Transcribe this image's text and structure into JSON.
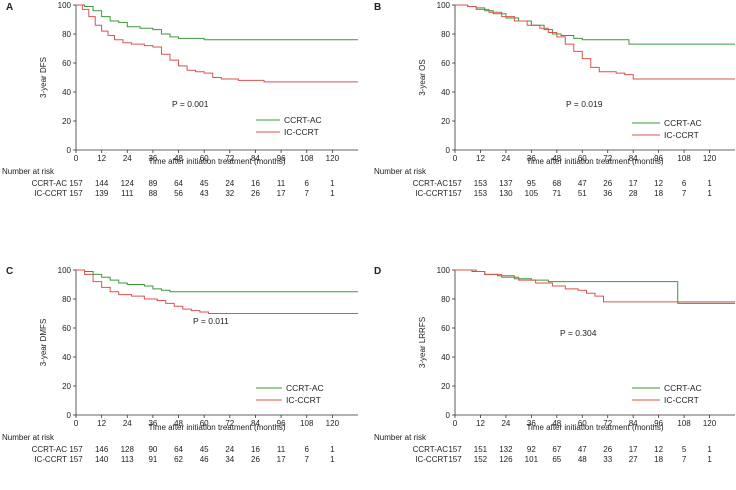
{
  "chart_data": [
    {
      "type": "line",
      "panel": "A",
      "ylabel": "3-year DFS",
      "xlabel": "Time after initiation treatment (months)",
      "xlim": [
        0,
        132
      ],
      "ylim": [
        0,
        100
      ],
      "xticks": [
        0,
        12,
        24,
        36,
        48,
        60,
        72,
        84,
        96,
        108,
        120
      ],
      "yticks": [
        0,
        20,
        40,
        60,
        80,
        100
      ],
      "p_value": "P = 0.001",
      "series": [
        {
          "name": "CCRT-AC",
          "color": "#3a9a3a",
          "points": [
            [
              0,
              100
            ],
            [
              4,
              99
            ],
            [
              8,
              96
            ],
            [
              12,
              92
            ],
            [
              16,
              89
            ],
            [
              20,
              88
            ],
            [
              24,
              85
            ],
            [
              30,
              84
            ],
            [
              36,
              83
            ],
            [
              40,
              80
            ],
            [
              44,
              78
            ],
            [
              48,
              77
            ],
            [
              56,
              77
            ],
            [
              60,
              76
            ],
            [
              132,
              76
            ]
          ]
        },
        {
          "name": "IC-CCRT",
          "color": "#d9534f",
          "points": [
            [
              0,
              100
            ],
            [
              3,
              97
            ],
            [
              6,
              92
            ],
            [
              9,
              86
            ],
            [
              12,
              82
            ],
            [
              15,
              79
            ],
            [
              18,
              76
            ],
            [
              22,
              74
            ],
            [
              26,
              73
            ],
            [
              32,
              72
            ],
            [
              36,
              71
            ],
            [
              40,
              66
            ],
            [
              44,
              62
            ],
            [
              48,
              58
            ],
            [
              52,
              55
            ],
            [
              56,
              54
            ],
            [
              60,
              53
            ],
            [
              64,
              50
            ],
            [
              68,
              49
            ],
            [
              72,
              49
            ],
            [
              76,
              48
            ],
            [
              84,
              48
            ],
            [
              88,
              47
            ],
            [
              132,
              47
            ]
          ]
        }
      ],
      "risk_table": {
        "title": "Number at risk",
        "rows": [
          {
            "label": "CCRT-AC",
            "values": [
              "157",
              "144",
              "124",
              "89",
              "64",
              "45",
              "24",
              "16",
              "11",
              "6",
              "1"
            ]
          },
          {
            "label": "IC-CCRT",
            "values": [
              "157",
              "139",
              "111",
              "88",
              "56",
              "43",
              "32",
              "26",
              "17",
              "7",
              "1"
            ]
          }
        ]
      }
    },
    {
      "type": "line",
      "panel": "B",
      "ylabel": "3-year OS",
      "xlabel": "Time after initiation treatment (months)",
      "xlim": [
        0,
        132
      ],
      "ylim": [
        0,
        100
      ],
      "xticks": [
        0,
        12,
        24,
        36,
        48,
        60,
        72,
        84,
        96,
        108,
        120
      ],
      "yticks": [
        0,
        20,
        40,
        60,
        80,
        100
      ],
      "p_value": "P = 0.019",
      "series": [
        {
          "name": "CCRT-AC",
          "color": "#3a9a3a",
          "points": [
            [
              0,
              100
            ],
            [
              6,
              99
            ],
            [
              10,
              98
            ],
            [
              14,
              96
            ],
            [
              18,
              94
            ],
            [
              24,
              91
            ],
            [
              30,
              89
            ],
            [
              36,
              86
            ],
            [
              42,
              83
            ],
            [
              46,
              80
            ],
            [
              50,
              79
            ],
            [
              56,
              77
            ],
            [
              60,
              76
            ],
            [
              64,
              76
            ],
            [
              80,
              76
            ],
            [
              82,
              73
            ],
            [
              132,
              73
            ]
          ]
        },
        {
          "name": "IC-CCRT",
          "color": "#d9534f",
          "points": [
            [
              0,
              100
            ],
            [
              6,
              99
            ],
            [
              10,
              97
            ],
            [
              16,
              95
            ],
            [
              22,
              92
            ],
            [
              28,
              89
            ],
            [
              34,
              86
            ],
            [
              40,
              84
            ],
            [
              44,
              81
            ],
            [
              48,
              78
            ],
            [
              52,
              73
            ],
            [
              56,
              68
            ],
            [
              60,
              63
            ],
            [
              64,
              57
            ],
            [
              68,
              54
            ],
            [
              72,
              54
            ],
            [
              76,
              53
            ],
            [
              80,
              52
            ],
            [
              84,
              49
            ],
            [
              88,
              49
            ],
            [
              132,
              49
            ]
          ]
        }
      ],
      "risk_table": {
        "title": "Number at risk",
        "rows": [
          {
            "label": "CCRT-AC",
            "values": [
              "157",
              "153",
              "137",
              "95",
              "68",
              "47",
              "26",
              "17",
              "12",
              "6",
              "1"
            ]
          },
          {
            "label": "IC-CCRT",
            "values": [
              "157",
              "153",
              "130",
              "105",
              "71",
              "51",
              "36",
              "28",
              "18",
              "7",
              "1"
            ]
          }
        ]
      }
    },
    {
      "type": "line",
      "panel": "C",
      "ylabel": "3-year DMFS",
      "xlabel": "Time after initiation treatment (months)",
      "xlim": [
        0,
        132
      ],
      "ylim": [
        0,
        100
      ],
      "xticks": [
        0,
        12,
        24,
        36,
        48,
        60,
        72,
        84,
        96,
        108,
        120
      ],
      "yticks": [
        0,
        20,
        40,
        60,
        80,
        100
      ],
      "p_value": "P = 0.011",
      "series": [
        {
          "name": "CCRT-AC",
          "color": "#3a9a3a",
          "points": [
            [
              0,
              100
            ],
            [
              4,
              99
            ],
            [
              8,
              97
            ],
            [
              12,
              95
            ],
            [
              16,
              93
            ],
            [
              20,
              91
            ],
            [
              24,
              90
            ],
            [
              32,
              89
            ],
            [
              36,
              87
            ],
            [
              40,
              86
            ],
            [
              44,
              85
            ],
            [
              132,
              85
            ]
          ]
        },
        {
          "name": "IC-CCRT",
          "color": "#d9534f",
          "points": [
            [
              0,
              100
            ],
            [
              4,
              97
            ],
            [
              8,
              92
            ],
            [
              12,
              88
            ],
            [
              16,
              85
            ],
            [
              20,
              83
            ],
            [
              26,
              82
            ],
            [
              32,
              80
            ],
            [
              38,
              79
            ],
            [
              42,
              77
            ],
            [
              46,
              75
            ],
            [
              50,
              73
            ],
            [
              54,
              72
            ],
            [
              58,
              71
            ],
            [
              62,
              70
            ],
            [
              132,
              70
            ]
          ]
        }
      ],
      "risk_table": {
        "title": "Number at risk",
        "rows": [
          {
            "label": "CCRT-AC",
            "values": [
              "157",
              "146",
              "128",
              "90",
              "64",
              "45",
              "24",
              "16",
              "11",
              "6",
              "1"
            ]
          },
          {
            "label": "IC-CCRT",
            "values": [
              "157",
              "140",
              "113",
              "91",
              "62",
              "46",
              "34",
              "26",
              "17",
              "7",
              "1"
            ]
          }
        ]
      }
    },
    {
      "type": "line",
      "panel": "D",
      "ylabel": "3-year LRRFS",
      "xlabel": "Time after initiation treatment (months)",
      "xlim": [
        0,
        132
      ],
      "ylim": [
        0,
        100
      ],
      "xticks": [
        0,
        12,
        24,
        36,
        48,
        60,
        72,
        84,
        96,
        108,
        120
      ],
      "yticks": [
        0,
        20,
        40,
        60,
        80,
        100
      ],
      "p_value": "P = 0.304",
      "series": [
        {
          "name": "CCRT-AC",
          "color": "#3a9a3a",
          "points": [
            [
              0,
              100
            ],
            [
              8,
              99
            ],
            [
              14,
              97
            ],
            [
              20,
              96
            ],
            [
              28,
              94
            ],
            [
              36,
              93
            ],
            [
              44,
              92
            ],
            [
              60,
              92
            ],
            [
              104,
              92
            ],
            [
              105,
              77
            ],
            [
              132,
              77
            ]
          ]
        },
        {
          "name": "IC-CCRT",
          "color": "#d9534f",
          "points": [
            [
              0,
              100
            ],
            [
              10,
              99
            ],
            [
              14,
              97
            ],
            [
              22,
              95
            ],
            [
              30,
              93
            ],
            [
              38,
              91
            ],
            [
              46,
              89
            ],
            [
              52,
              87
            ],
            [
              58,
              86
            ],
            [
              62,
              84
            ],
            [
              66,
              82
            ],
            [
              70,
              78
            ],
            [
              132,
              78
            ]
          ]
        }
      ],
      "risk_table": {
        "title": "Number at risk",
        "rows": [
          {
            "label": "CCRT-AC",
            "values": [
              "157",
              "151",
              "132",
              "92",
              "67",
              "47",
              "26",
              "17",
              "12",
              "5",
              "1"
            ]
          },
          {
            "label": "IC-CCRT",
            "values": [
              "157",
              "152",
              "126",
              "101",
              "65",
              "48",
              "33",
              "27",
              "18",
              "7",
              "1"
            ]
          }
        ]
      }
    }
  ]
}
